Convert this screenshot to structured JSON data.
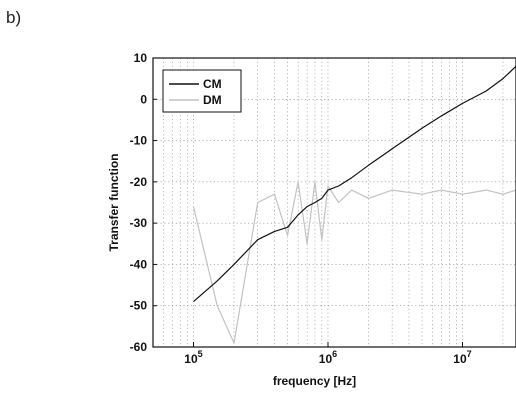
{
  "panel_label": "b)",
  "chart_data": {
    "type": "line",
    "xlabel": "frequency [Hz]",
    "ylabel": "Transfer function",
    "xscale": "log",
    "xlim": [
      50000,
      25000000
    ],
    "ylim": [
      -60,
      10
    ],
    "grid": true,
    "legend_position": "top-left",
    "x_ticks": [
      {
        "value": 100000,
        "base": "10",
        "exp": "5"
      },
      {
        "value": 1000000,
        "base": "10",
        "exp": "6"
      },
      {
        "value": 10000000,
        "base": "10",
        "exp": "7"
      }
    ],
    "y_ticks": [
      10,
      0,
      -10,
      -20,
      -30,
      -40,
      -50,
      -60
    ],
    "series": [
      {
        "name": "CM",
        "color": "#111111",
        "x": [
          100000,
          150000,
          200000,
          300000,
          400000,
          500000,
          600000,
          700000,
          800000,
          900000,
          1000000,
          1200000,
          1500000,
          2000000,
          3000000,
          5000000,
          7000000,
          10000000,
          15000000,
          20000000,
          25000000
        ],
        "y": [
          -49,
          -44,
          -40,
          -34,
          -32,
          -31,
          -28,
          -26,
          -25,
          -24,
          -22,
          -21,
          -19,
          -16,
          -12,
          -7,
          -4,
          -1,
          2,
          5,
          8
        ]
      },
      {
        "name": "DM",
        "color": "#c2c2c2",
        "x": [
          100000,
          150000,
          200000,
          300000,
          400000,
          500000,
          600000,
          700000,
          800000,
          900000,
          1000000,
          1200000,
          1500000,
          2000000,
          3000000,
          5000000,
          7000000,
          10000000,
          15000000,
          20000000,
          25000000
        ],
        "y": [
          -26,
          -50,
          -59,
          -25,
          -23,
          -33,
          -20,
          -35,
          -20,
          -34,
          -21,
          -25,
          -22,
          -24,
          -22,
          -23,
          -22,
          -23,
          -22,
          -23,
          -22
        ]
      }
    ]
  }
}
